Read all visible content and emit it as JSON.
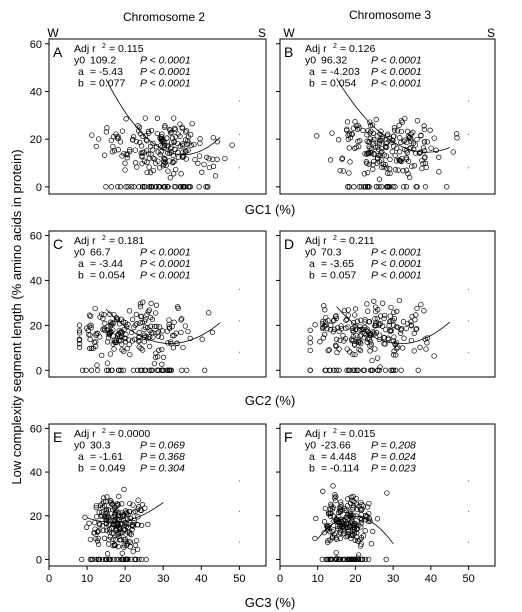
{
  "column_titles": [
    "Chromosome 2",
    "Chromosome 3"
  ],
  "corner_labels": {
    "left": "W",
    "right": "S"
  },
  "ylabel": "Low complexity segment length (% amino acids in protein)",
  "row_xlabels": [
    "GC1 (%)",
    "GC2 (%)",
    "GC3 (%)"
  ],
  "chart_data": [
    {
      "type": "scatter",
      "panel": "A",
      "chromosome": "Chromosome 2",
      "xlabel": "GC1 (%)",
      "xlim": [
        0,
        57
      ],
      "ylim": [
        -3,
        62
      ],
      "x_ticks": [
        0,
        10,
        20,
        30,
        40,
        50
      ],
      "y_ticks": [
        0,
        20,
        40,
        60
      ],
      "fit": {
        "y0": 109.2,
        "a": -5.43,
        "b": 0.077
      },
      "stats": [
        {
          "label": "Adj r",
          "sup": "2",
          "value": "= 0.115",
          "p": ""
        },
        {
          "label": "y0",
          "value": "109.2",
          "p": "P < 0.0001"
        },
        {
          "label": "a",
          "value": "=  -5.43",
          "p": "P < 0.0001"
        },
        {
          "label": "b",
          "value": "=  0.077",
          "p": "P < 0.0001"
        }
      ]
    },
    {
      "type": "scatter",
      "panel": "B",
      "chromosome": "Chromosome 3",
      "xlabel": "GC1 (%)",
      "xlim": [
        0,
        57
      ],
      "ylim": [
        -3,
        62
      ],
      "x_ticks": [
        0,
        10,
        20,
        30,
        40,
        50
      ],
      "y_ticks": [
        0,
        20,
        40,
        60
      ],
      "fit": {
        "y0": 96.32,
        "a": -4.203,
        "b": 0.054
      },
      "stats": [
        {
          "label": "Adj r",
          "sup": "2",
          "value": "= 0.126",
          "p": ""
        },
        {
          "label": "y0",
          "value": "96.32",
          "p": "P < 0.0001"
        },
        {
          "label": "a",
          "value": "=  -4.203",
          "p": "P < 0.0001"
        },
        {
          "label": "b",
          "value": "=  0.054",
          "p": "P < 0.0001"
        }
      ]
    },
    {
      "type": "scatter",
      "panel": "C",
      "chromosome": "Chromosome 2",
      "xlabel": "GC2 (%)",
      "xlim": [
        0,
        57
      ],
      "ylim": [
        -3,
        62
      ],
      "x_ticks": [
        0,
        10,
        20,
        30,
        40,
        50
      ],
      "y_ticks": [
        0,
        20,
        40,
        60
      ],
      "fit": {
        "y0": 66.7,
        "a": -3.44,
        "b": 0.054
      },
      "stats": [
        {
          "label": "Adj r",
          "sup": "2",
          "value": "= 0.181",
          "p": ""
        },
        {
          "label": "y0",
          "value": "66.7",
          "p": "P < 0.0001"
        },
        {
          "label": "a",
          "value": "=  -3.44",
          "p": "P < 0.0001"
        },
        {
          "label": "b",
          "value": "=  0.054",
          "p": "P < 0.0001"
        }
      ]
    },
    {
      "type": "scatter",
      "panel": "D",
      "chromosome": "Chromosome 3",
      "xlabel": "GC2 (%)",
      "xlim": [
        0,
        57
      ],
      "ylim": [
        -3,
        62
      ],
      "x_ticks": [
        0,
        10,
        20,
        30,
        40,
        50
      ],
      "y_ticks": [
        0,
        20,
        40,
        60
      ],
      "fit": {
        "y0": 70.3,
        "a": -3.65,
        "b": 0.057
      },
      "stats": [
        {
          "label": "Adj r",
          "sup": "2",
          "value": "= 0.211",
          "p": ""
        },
        {
          "label": "y0",
          "value": "70.3",
          "p": "P < 0.0001"
        },
        {
          "label": "a",
          "value": "=  -3.65",
          "p": "P < 0.0001"
        },
        {
          "label": "b",
          "value": "=  0.057",
          "p": "P < 0.0001"
        }
      ]
    },
    {
      "type": "scatter",
      "panel": "E",
      "chromosome": "Chromosome 2",
      "xlabel": "GC3 (%)",
      "xlim": [
        0,
        57
      ],
      "ylim": [
        -3,
        62
      ],
      "x_ticks": [
        0,
        10,
        20,
        30,
        40,
        50
      ],
      "y_ticks": [
        0,
        20,
        40,
        60
      ],
      "fit": {
        "y0": 30.3,
        "a": -1.61,
        "b": 0.049
      },
      "stats": [
        {
          "label": "Adj r",
          "sup": "2",
          "value": "= 0.0000",
          "p": ""
        },
        {
          "label": "y0",
          "value": "30.3",
          "p": "P = 0.069"
        },
        {
          "label": "a",
          "value": "=  -1.61",
          "p": "P = 0.368"
        },
        {
          "label": "b",
          "value": "=  0.049",
          "p": "P = 0.304"
        }
      ]
    },
    {
      "type": "scatter",
      "panel": "F",
      "chromosome": "Chromosome 3",
      "xlabel": "GC3 (%)",
      "xlim": [
        0,
        57
      ],
      "ylim": [
        -3,
        62
      ],
      "x_ticks": [
        0,
        10,
        20,
        30,
        40,
        50
      ],
      "y_ticks": [
        0,
        20,
        40,
        60
      ],
      "fit": {
        "y0": -23.66,
        "a": 4.448,
        "b": -0.114
      },
      "stats": [
        {
          "label": "Adj r",
          "sup": "2",
          "value": "= 0.015",
          "p": ""
        },
        {
          "label": "y0",
          "value": "-23.66",
          "p": "P = 0.208"
        },
        {
          "label": "a",
          "value": "=  4.448",
          "p": "P = 0.024"
        },
        {
          "label": "b",
          "value": "=  -0.114",
          "p": "P = 0.023"
        }
      ]
    }
  ]
}
